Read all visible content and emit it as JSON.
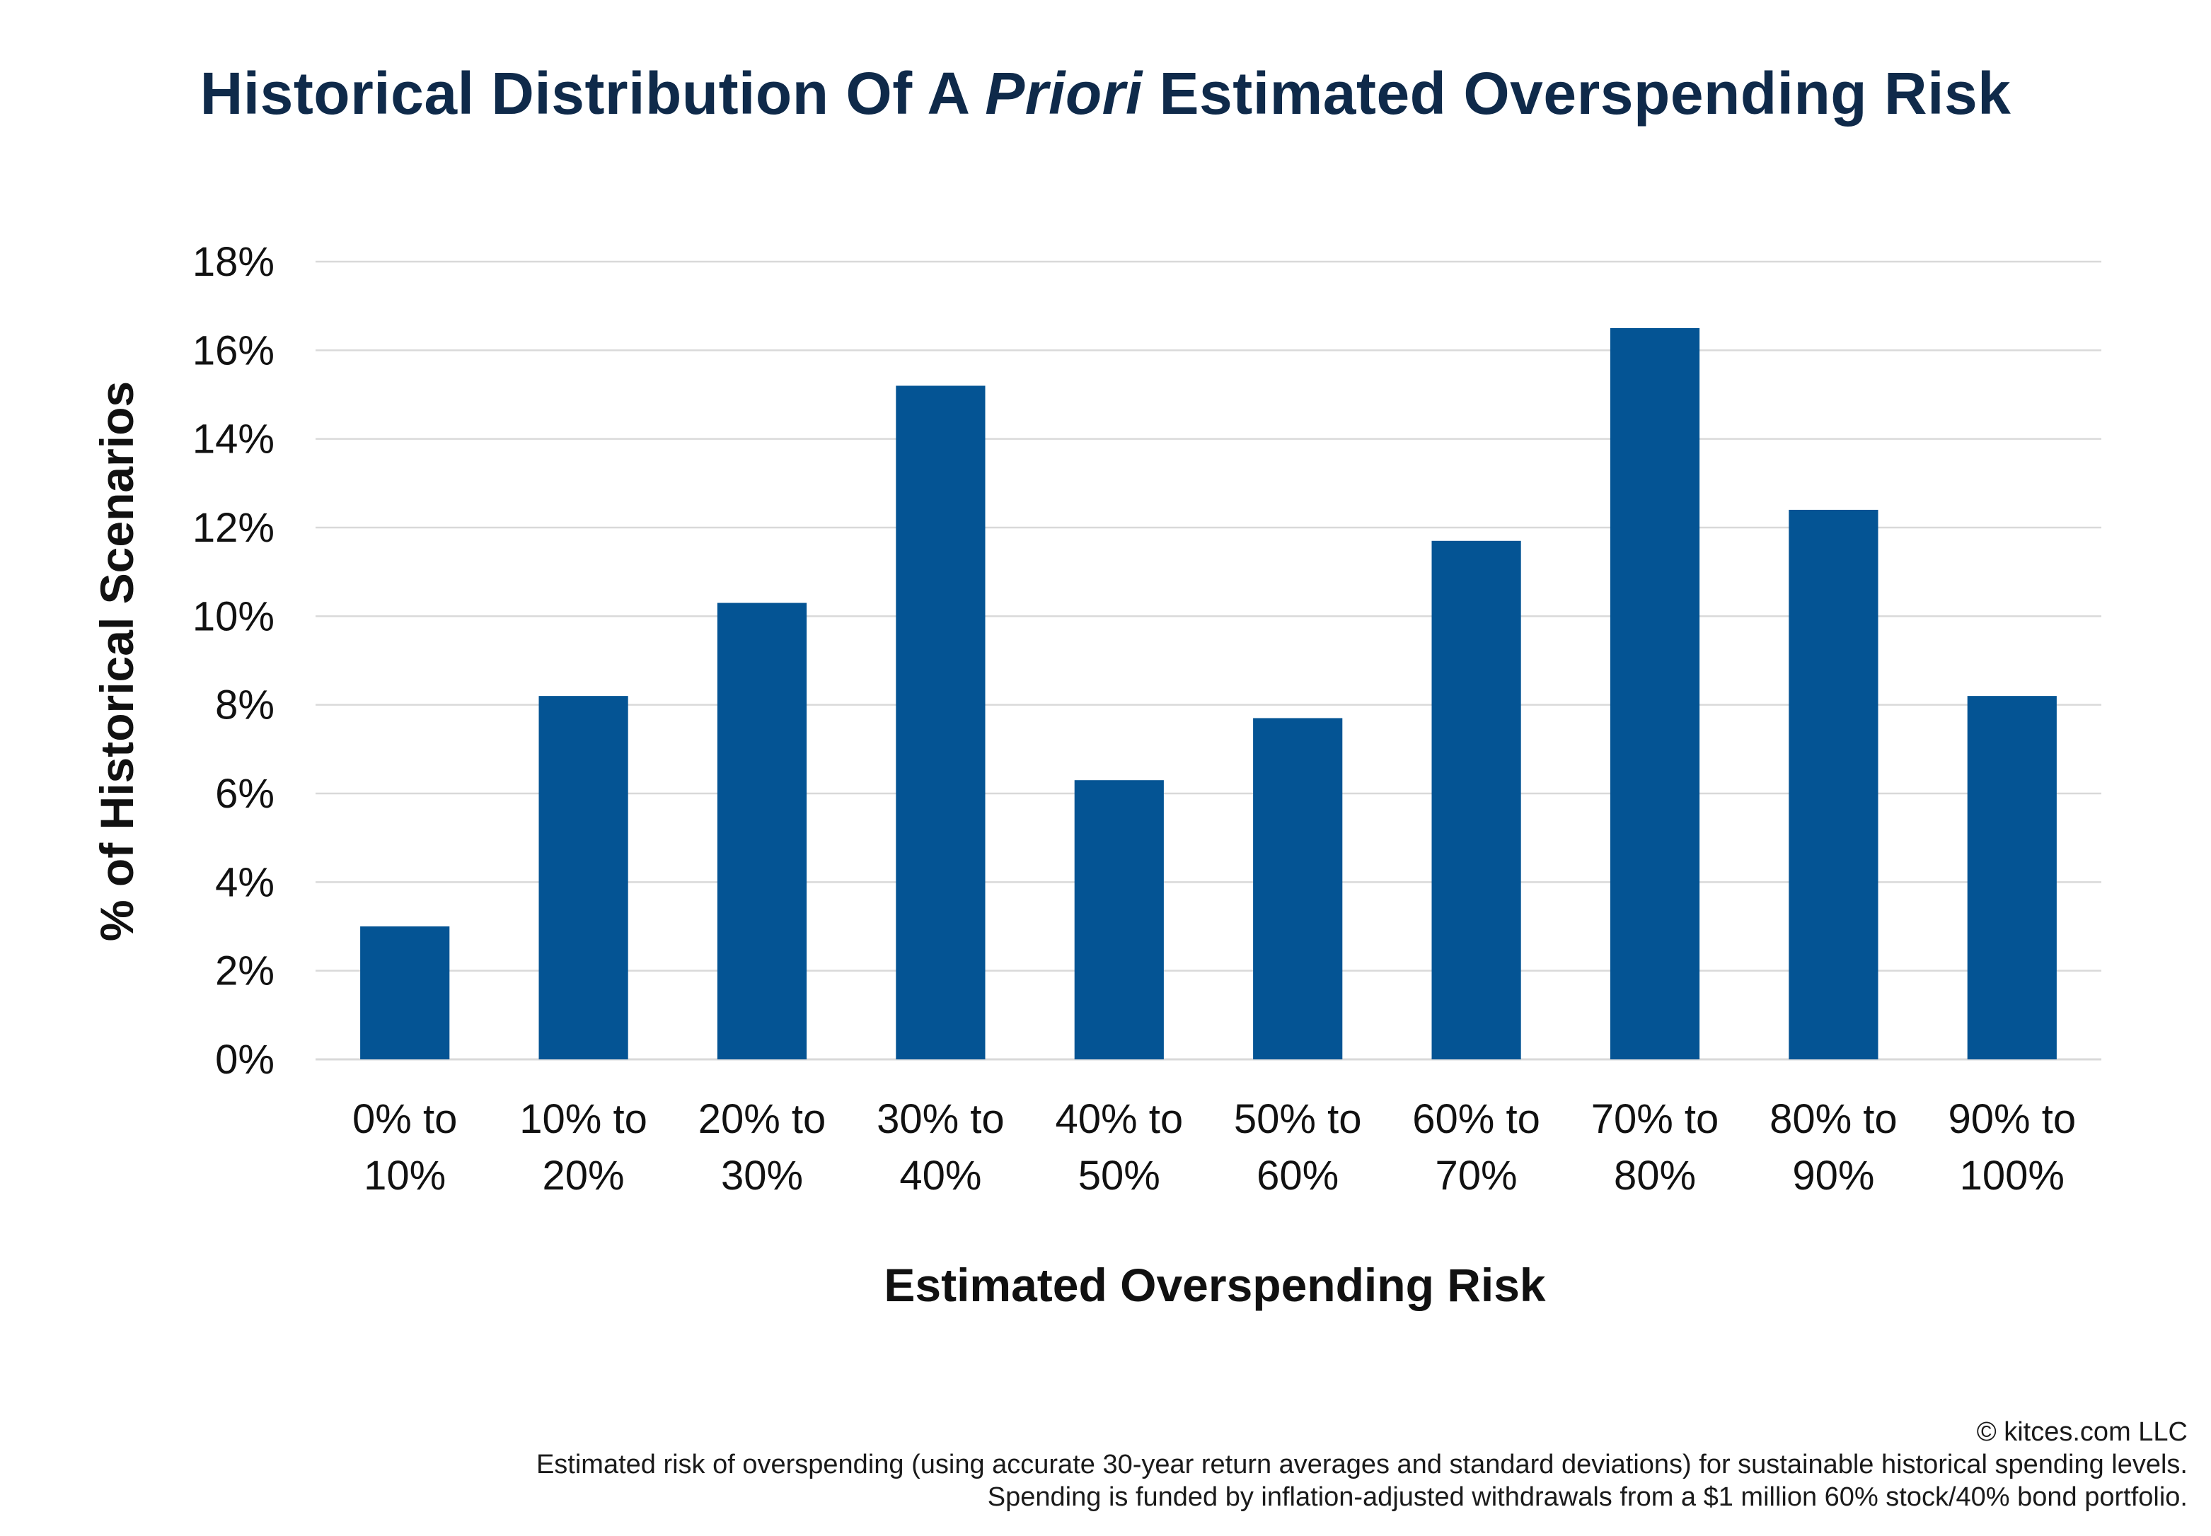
{
  "title": {
    "part1": "Historical Distribution Of A ",
    "part2": "Priori",
    "part3": " Estimated Overspending Risk"
  },
  "chart_data": {
    "type": "bar",
    "title": "Historical Distribution Of A Priori Estimated Overspending Risk",
    "xlabel": "Estimated Overspending Risk",
    "ylabel": "% of Historical Scenarios",
    "categories": [
      [
        "0% to",
        "10%"
      ],
      [
        "10% to",
        "20%"
      ],
      [
        "20% to",
        "30%"
      ],
      [
        "30% to",
        "40%"
      ],
      [
        "40% to",
        "50%"
      ],
      [
        "50% to",
        "60%"
      ],
      [
        "60% to",
        "70%"
      ],
      [
        "70% to",
        "80%"
      ],
      [
        "80% to",
        "90%"
      ],
      [
        "90% to",
        "100%"
      ]
    ],
    "values": [
      3.0,
      8.2,
      10.3,
      15.2,
      6.3,
      7.7,
      11.7,
      16.5,
      12.4,
      8.2
    ],
    "ylim": [
      0,
      18
    ],
    "yticks": [
      0,
      2,
      4,
      6,
      8,
      10,
      12,
      14,
      16,
      18
    ],
    "ytick_labels": [
      "0%",
      "2%",
      "4%",
      "6%",
      "8%",
      "10%",
      "12%",
      "14%",
      "16%",
      "18%"
    ],
    "grid": true,
    "legend": "none",
    "bar_color": "#045494",
    "grid_color": "#d9d9d9",
    "title_color": "#0f2a4a"
  },
  "footer": {
    "copyright": "© kitces.com LLC",
    "note1": "Estimated risk of overspending (using accurate 30-year return averages and standard deviations) for sustainable historical spending levels.",
    "note2": "Spending is funded by inflation-adjusted withdrawals from a $1 million 60% stock/40% bond portfolio."
  }
}
